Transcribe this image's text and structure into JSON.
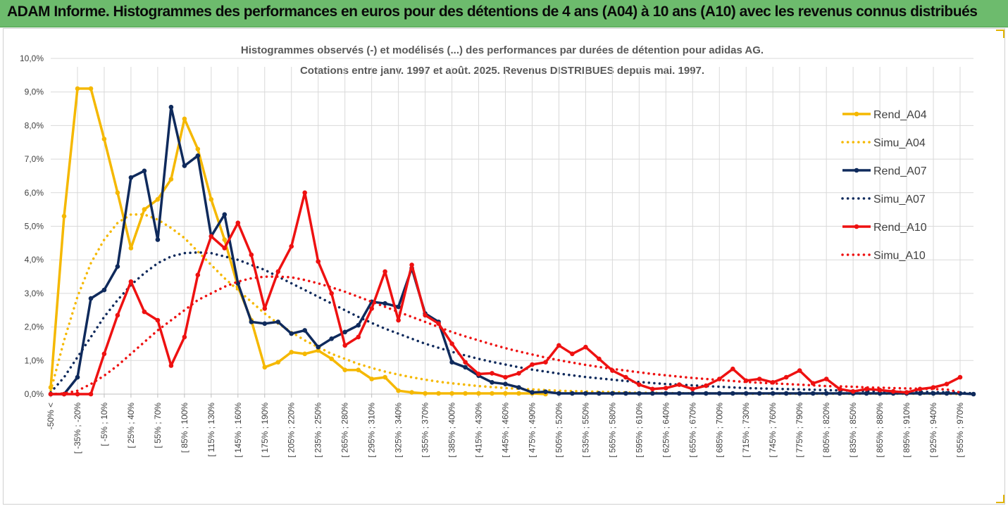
{
  "banner": {
    "title": "ADAM Informe. Histogrammes des performances en euros pour des détentions de 4 ans (A04) à 10 ans (A10) avec les revenus connus distribués"
  },
  "colors": {
    "banner_bg": "#6dbb6d",
    "A04": "#f5b800",
    "A07": "#0f2a5c",
    "A10": "#ee1111",
    "grid": "#d9d9d9"
  },
  "chart_data": {
    "type": "line",
    "title_lines": [
      "Histogrammes observés (-) et modélisés (...) des performances par durées de détention pour adidas AG.",
      "Cotations entre janv. 1997 et août. 2025. Revenus DISTRIBUES depuis mai. 1997."
    ],
    "ylim": [
      0,
      10
    ],
    "y_ticks": [
      "0,0%",
      "1,0%",
      "2,0%",
      "3,0%",
      "4,0%",
      "5,0%",
      "6,0%",
      "7,0%",
      "8,0%",
      "9,0%",
      "10,0%"
    ],
    "x_tick_labels": [
      "-50% <",
      "[ -35% ; -20%",
      "[ -5% ; 10%",
      "[ 25% ; 40%",
      "[ 55% ; 70%",
      "[ 85% ; 100%",
      "[ 115% ; 130%",
      "[ 145% ; 160%",
      "[ 175% ; 190%",
      "[ 205% ; 220%",
      "[ 235% ; 250%",
      "[ 265% ; 280%",
      "[ 295% ; 310%",
      "[ 325% ; 340%",
      "[ 355% ; 370%",
      "[ 385% ; 400%",
      "[ 415% ; 430%",
      "[ 445% ; 460%",
      "[ 475% ; 490%",
      "[ 505% ; 520%",
      "[ 535% ; 550%",
      "[ 565% ; 580%",
      "[ 595% ; 610%",
      "[ 625% ; 640%",
      "[ 655% ; 670%",
      "[ 685% ; 700%",
      "[ 715% ; 730%",
      "[ 745% ; 760%",
      "[ 775% ; 790%",
      "[ 805% ; 820%",
      "[ 835% ; 850%",
      "[ 865% ; 880%",
      "[ 895% ; 910%",
      "[ 925% ; 940%",
      "[ 955% ; 970%"
    ],
    "legend_position": "top-right",
    "series": [
      {
        "name": "Rend_A04",
        "style": "solid",
        "color": "#f5b800",
        "values": [
          0.2,
          5.3,
          9.1,
          9.1,
          7.6,
          6.0,
          4.35,
          5.5,
          5.8,
          6.4,
          8.2,
          7.3,
          5.8,
          4.6,
          3.2,
          2.2,
          0.8,
          0.95,
          1.25,
          1.2,
          1.3,
          1.05,
          0.72,
          0.72,
          0.45,
          0.5,
          0.1,
          0.05,
          0.02,
          0.02,
          0.02,
          0.02,
          0.02,
          0.02,
          0.02,
          0.02,
          0.02,
          0.0
        ]
      },
      {
        "name": "Simu_A04",
        "style": "dotted",
        "color": "#f5b800",
        "values": [
          0.1,
          1.6,
          2.9,
          3.9,
          4.6,
          5.1,
          5.35,
          5.35,
          5.2,
          4.95,
          4.65,
          4.25,
          3.85,
          3.45,
          3.1,
          2.75,
          2.4,
          2.1,
          1.85,
          1.6,
          1.4,
          1.2,
          1.05,
          0.9,
          0.78,
          0.67,
          0.58,
          0.5,
          0.43,
          0.37,
          0.32,
          0.28,
          0.24,
          0.21,
          0.18,
          0.16,
          0.14,
          0.12,
          0.1,
          0.09,
          0.08,
          0.07,
          0.06,
          0.05,
          0.04,
          0.04,
          0.03,
          0.03,
          0.02,
          0.02,
          0.02,
          0.02,
          0.01,
          0.01,
          0.01,
          0.01,
          0.01,
          0.01,
          0.01,
          0.01,
          0.01,
          0.01,
          0.01,
          0.01,
          0.01,
          0.01,
          0.01,
          0.01,
          0.0
        ]
      },
      {
        "name": "Rend_A07",
        "style": "solid",
        "color": "#0f2a5c",
        "values": [
          0.0,
          0.0,
          0.5,
          2.85,
          3.1,
          3.8,
          6.45,
          6.65,
          4.6,
          8.55,
          6.8,
          7.1,
          4.7,
          5.35,
          3.3,
          2.15,
          2.1,
          2.15,
          1.8,
          1.9,
          1.4,
          1.65,
          1.85,
          2.05,
          2.75,
          2.7,
          2.6,
          3.75,
          2.4,
          2.15,
          0.95,
          0.8,
          0.55,
          0.35,
          0.3,
          0.2,
          0.05,
          0.07,
          0.02,
          0.02,
          0.02,
          0.02,
          0.02,
          0.02,
          0.02,
          0.02,
          0.02,
          0.02,
          0.02,
          0.02,
          0.02,
          0.02,
          0.02,
          0.02,
          0.02,
          0.02,
          0.02,
          0.02,
          0.02,
          0.02,
          0.02,
          0.02,
          0.02,
          0.02,
          0.02,
          0.02,
          0.02,
          0.02,
          0.02,
          0.0
        ]
      },
      {
        "name": "Simu_A07",
        "style": "dotted",
        "color": "#0f2a5c",
        "values": [
          0.05,
          0.5,
          1.1,
          1.7,
          2.3,
          2.8,
          3.25,
          3.6,
          3.9,
          4.1,
          4.2,
          4.22,
          4.2,
          4.1,
          4.0,
          3.85,
          3.7,
          3.5,
          3.3,
          3.1,
          2.9,
          2.7,
          2.5,
          2.3,
          2.12,
          1.95,
          1.8,
          1.65,
          1.5,
          1.38,
          1.26,
          1.15,
          1.05,
          0.96,
          0.88,
          0.8,
          0.73,
          0.67,
          0.61,
          0.56,
          0.51,
          0.47,
          0.43,
          0.39,
          0.36,
          0.33,
          0.3,
          0.28,
          0.26,
          0.24,
          0.22,
          0.2,
          0.18,
          0.17,
          0.16,
          0.15,
          0.14,
          0.13,
          0.12,
          0.11,
          0.1,
          0.09,
          0.08,
          0.08,
          0.07,
          0.07,
          0.06,
          0.06,
          0.05,
          0.02
        ]
      },
      {
        "name": "Rend_A10",
        "style": "solid",
        "color": "#ee1111",
        "values": [
          0.0,
          0.0,
          0.0,
          0.0,
          1.2,
          2.35,
          3.35,
          2.45,
          2.2,
          0.85,
          1.7,
          3.55,
          4.7,
          4.35,
          5.1,
          4.15,
          2.55,
          3.65,
          4.4,
          6.0,
          3.95,
          3.0,
          1.45,
          1.7,
          2.55,
          3.65,
          2.2,
          3.85,
          2.35,
          2.1,
          1.5,
          0.95,
          0.6,
          0.62,
          0.5,
          0.62,
          0.88,
          0.95,
          1.45,
          1.2,
          1.4,
          1.05,
          0.7,
          0.5,
          0.28,
          0.15,
          0.18,
          0.28,
          0.15,
          0.25,
          0.45,
          0.75,
          0.4,
          0.45,
          0.35,
          0.5,
          0.7,
          0.32,
          0.45,
          0.15,
          0.08,
          0.15,
          0.12,
          0.08,
          0.05,
          0.15,
          0.2,
          0.3,
          0.5
        ]
      },
      {
        "name": "Simu_A10",
        "style": "dotted",
        "color": "#ee1111",
        "values": [
          0.0,
          0.02,
          0.1,
          0.3,
          0.55,
          0.85,
          1.2,
          1.55,
          1.9,
          2.2,
          2.5,
          2.8,
          3.0,
          3.2,
          3.35,
          3.45,
          3.5,
          3.5,
          3.48,
          3.4,
          3.3,
          3.18,
          3.05,
          2.9,
          2.75,
          2.6,
          2.45,
          2.3,
          2.15,
          2.0,
          1.85,
          1.72,
          1.6,
          1.48,
          1.37,
          1.27,
          1.18,
          1.09,
          1.01,
          0.94,
          0.87,
          0.81,
          0.75,
          0.7,
          0.65,
          0.6,
          0.56,
          0.52,
          0.48,
          0.45,
          0.42,
          0.39,
          0.36,
          0.34,
          0.32,
          0.3,
          0.28,
          0.26,
          0.24,
          0.23,
          0.22,
          0.2,
          0.19,
          0.18,
          0.17,
          0.16,
          0.15,
          0.14,
          0.05
        ]
      }
    ]
  }
}
